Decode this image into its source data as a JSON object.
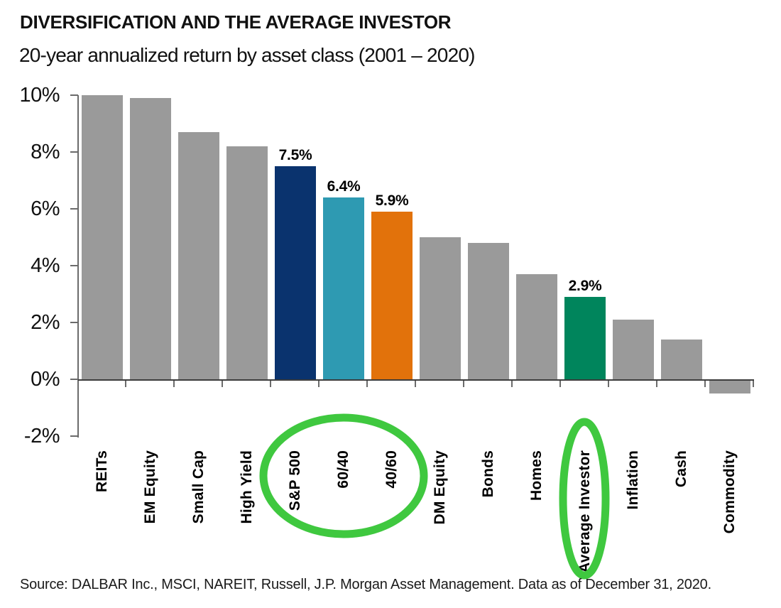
{
  "header": {
    "title": "DIVERSIFICATION AND THE AVERAGE INVESTOR",
    "subtitle": "20-year annualized return by asset class (2001 – 2020)"
  },
  "footer": {
    "source": "Source: DALBAR Inc., MSCI, NAREIT, Russell, J.P. Morgan Asset Management. Data as of December 31, 2020."
  },
  "colors": {
    "bar_default": "#9A9A9A",
    "navy": "#0A336E",
    "teal": "#2E9AB2",
    "orange": "#E2720B",
    "green": "#00855C",
    "annotation_green": "#3FC83F",
    "axis": "#6B6B6B",
    "baseline": "#3D3D3D",
    "text": "#111111"
  },
  "chart_data": {
    "type": "bar",
    "title": "DIVERSIFICATION AND THE AVERAGE INVESTOR",
    "subtitle": "20-year annualized return by asset class (2001 – 2020)",
    "ylim": [
      -2,
      10
    ],
    "grid": false,
    "legend": false,
    "y_ticks": [
      {
        "label": "10%",
        "value": 10
      },
      {
        "label": "8%",
        "value": 8
      },
      {
        "label": "6%",
        "value": 6
      },
      {
        "label": "4%",
        "value": 4
      },
      {
        "label": "2%",
        "value": 2
      },
      {
        "label": "0%",
        "value": 0
      },
      {
        "label": "-2%",
        "value": -2
      }
    ],
    "categories": [
      "REITs",
      "EM Equity",
      "Small Cap",
      "High Yield",
      "S&P 500",
      "60/40",
      "40/60",
      "DM Equity",
      "Bonds",
      "Homes",
      "Average Investor",
      "Inflation",
      "Cash",
      "Commodity"
    ],
    "values": [
      10.0,
      9.9,
      8.7,
      8.2,
      7.5,
      6.4,
      5.9,
      5.0,
      4.8,
      3.7,
      2.9,
      2.1,
      1.4,
      -0.5
    ],
    "bars": [
      {
        "label": "REITs",
        "value": 10.0,
        "color": "bar_default",
        "data_label": null
      },
      {
        "label": "EM Equity",
        "value": 9.9,
        "color": "bar_default",
        "data_label": null
      },
      {
        "label": "Small Cap",
        "value": 8.7,
        "color": "bar_default",
        "data_label": null
      },
      {
        "label": "High Yield",
        "value": 8.2,
        "color": "bar_default",
        "data_label": null
      },
      {
        "label": "S&P 500",
        "value": 7.5,
        "color": "navy",
        "data_label": "7.5%"
      },
      {
        "label": "60/40",
        "value": 6.4,
        "color": "teal",
        "data_label": "6.4%"
      },
      {
        "label": "40/60",
        "value": 5.9,
        "color": "orange",
        "data_label": "5.9%"
      },
      {
        "label": "DM Equity",
        "value": 5.0,
        "color": "bar_default",
        "data_label": null
      },
      {
        "label": "Bonds",
        "value": 4.8,
        "color": "bar_default",
        "data_label": null
      },
      {
        "label": "Homes",
        "value": 3.7,
        "color": "bar_default",
        "data_label": null
      },
      {
        "label": "Average Investor",
        "value": 2.9,
        "color": "green",
        "data_label": "2.9%"
      },
      {
        "label": "Inflation",
        "value": 2.1,
        "color": "bar_default",
        "data_label": null
      },
      {
        "label": "Cash",
        "value": 1.4,
        "color": "bar_default",
        "data_label": null
      },
      {
        "label": "Commodity",
        "value": -0.5,
        "color": "bar_default",
        "data_label": null
      }
    ],
    "annotations": [
      {
        "type": "ellipse",
        "around": "S&P 500, 60/40, 40/60",
        "cx": 484,
        "cy": 670,
        "rx": 113,
        "ry": 82
      },
      {
        "type": "ellipse",
        "around": "Average Investor",
        "cx": 823,
        "cy": 702,
        "rx": 30,
        "ry": 108
      }
    ]
  }
}
